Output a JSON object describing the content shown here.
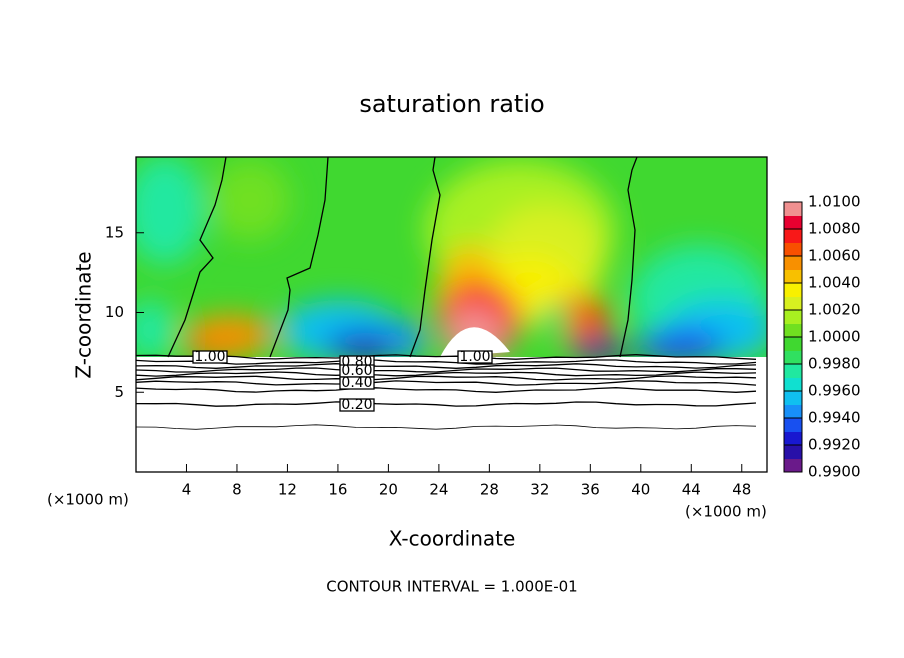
{
  "chart_data": {
    "type": "contour",
    "title": "saturation ratio",
    "xlabel": "X-coordinate",
    "ylabel": "Z-coordinate",
    "x_unit": "(×1000 m)",
    "y_unit": "(×1000 m)",
    "footer": "CONTOUR INTERVAL = 1.000E-01",
    "xlim": [
      0,
      50
    ],
    "xticks": [
      4,
      8,
      12,
      16,
      20,
      24,
      28,
      32,
      36,
      40,
      44,
      48
    ],
    "ylim": [
      0,
      19.75
    ],
    "yticks": [
      5,
      10,
      15
    ],
    "contour_levels": [
      {
        "value": 1.0,
        "label": "1.00"
      },
      0.9,
      {
        "value": 0.8,
        "label": "0.80"
      },
      0.7,
      {
        "value": 0.6,
        "label": "0.60"
      },
      0.5,
      {
        "value": 0.4,
        "label": "0.40"
      },
      0.3,
      {
        "value": 0.2,
        "label": "0.20"
      },
      0.1
    ],
    "colorbar_lim": [
      0.99,
      1.01
    ],
    "colorbar_ticks": [
      {
        "value": 0.99,
        "label": "0.9900"
      },
      {
        "value": 0.992,
        "label": "0.9920"
      },
      {
        "value": 0.994,
        "label": "0.9940"
      },
      {
        "value": 0.996,
        "label": "0.9960"
      },
      {
        "value": 0.998,
        "label": "0.9980"
      },
      {
        "value": 1.0,
        "label": "1.0000"
      },
      {
        "value": 1.002,
        "label": "1.0020"
      },
      {
        "value": 1.004,
        "label": "1.0040"
      },
      {
        "value": 1.006,
        "label": "1.0060"
      },
      {
        "value": 1.008,
        "label": "1.0080"
      },
      {
        "value": 1.01,
        "label": "1.0100"
      }
    ],
    "colors": [
      "#6a1a8a",
      "#2810a8",
      "#1818d0",
      "#1850f0",
      "#1890f8",
      "#10c0f0",
      "#10e0d0",
      "#20e8a0",
      "#30e060",
      "#40d830",
      "#70e020",
      "#a8f020",
      "#d8f020",
      "#f8f000",
      "#f8c000",
      "#f89000",
      "#f85000",
      "#f81818",
      "#e80030",
      "#f09090"
    ]
  }
}
